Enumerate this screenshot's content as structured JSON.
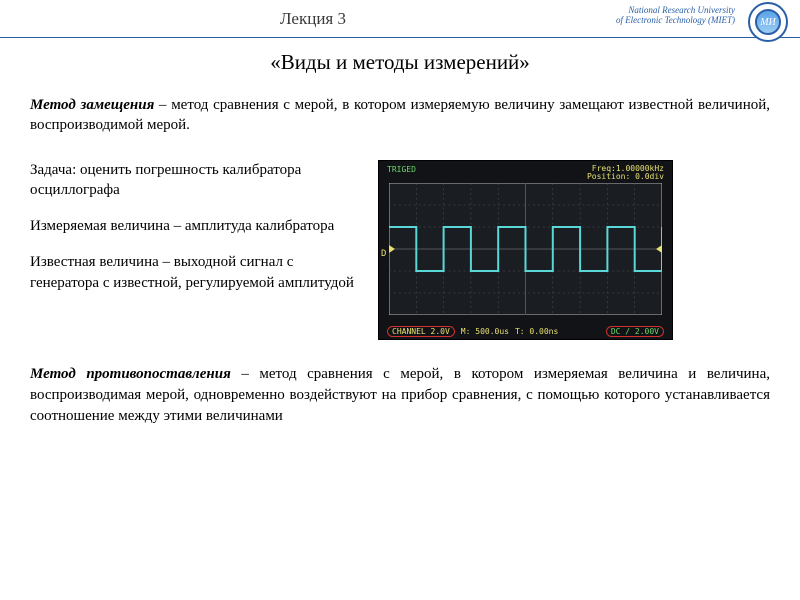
{
  "header": {
    "lecture": "Лекция 3",
    "uni_line1": "National Research University",
    "uni_line2": "of Electronic Technology (MIET)",
    "logo_text": "MИ"
  },
  "title": "«Виды и методы измерений»",
  "p1_bold": "Метод замещения",
  "p1_rest": " – метод сравнения с мерой, в котором измеряемую величину замещают известной величиной, воспроизводимой мерой.",
  "left": {
    "task": "Задача: оценить погрешность калибратора осциллографа",
    "measured": "Измеряемая величина – амплитуда калибратора",
    "known": "Известная величина – выходной сигнал с генератора с известной, регулируемой амплитудой"
  },
  "scope": {
    "triged": "TRIGED",
    "freq": "Freq:1.00000kHz",
    "pos": "Position: 0.0div",
    "ch": "CHANNEL  2.0V",
    "m": "M: 500.0us",
    "t": "T: 0.00ns",
    "dc": "DC  /  2.00V",
    "d_marker": "D",
    "wave": {
      "type": "square",
      "periods": 5,
      "amplitude_divs": 1.0,
      "offset_divs": 0,
      "trace_color": "#5ad8d8",
      "trace_width": 2,
      "grid_color": "#555555",
      "bg_color": "#1a1d22",
      "hdivs": 10,
      "vdivs": 6,
      "outer_border_color": "#b8b8b8"
    }
  },
  "p2_bold": "Метод противопоставления",
  "p2_rest": " – метод сравнения с мерой, в котором измеряемая величина и величина, воспроизводимая мерой, одновременно воздействуют на прибор сравнения, с помощью которого устанавливается соотношение между этими величинами"
}
